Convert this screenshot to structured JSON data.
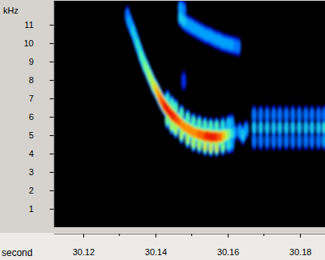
{
  "chart_data": {
    "type": "heatmap",
    "xlabel": "second",
    "ylabel": "kHz",
    "xlim": [
      30.1118,
      30.1869
    ],
    "ylim": [
      0,
      12.3
    ],
    "xticks": [
      30.12,
      30.14,
      30.16,
      30.18
    ],
    "xminorticks": [
      30.13,
      30.15,
      30.17
    ],
    "yticks": [
      1,
      2,
      3,
      4,
      5,
      6,
      7,
      8,
      9,
      10,
      11
    ],
    "zlim": [
      0,
      1
    ],
    "cells": {
      "x": [
        30.1322,
        30.1327,
        30.1332,
        30.1338,
        30.1344,
        30.135,
        30.1356,
        30.1361,
        30.1367,
        30.1372,
        30.1378,
        30.1383,
        30.1389,
        30.1394,
        30.14,
        30.1405,
        30.1411,
        30.1416,
        30.1422,
        30.1427,
        30.1433,
        30.1439,
        30.1445,
        30.1451,
        30.1456,
        30.1464,
        30.1472,
        30.148,
        30.1489,
        30.1497,
        30.1505,
        30.1513,
        30.1521,
        30.1529,
        30.1537,
        30.1545,
        30.1553,
        30.1561,
        30.1569,
        30.1578,
        30.1586,
        30.1594,
        30.1602,
        30.1611,
        30.1618,
        30.1433,
        30.1445,
        30.1456,
        30.1472,
        30.1489,
        30.1505,
        30.1521,
        30.1537,
        30.1553,
        30.1569,
        30.1586,
        30.1602,
        30.1611,
        30.1433,
        30.1445,
        30.1456,
        30.1472,
        30.1489,
        30.1505,
        30.1521,
        30.1537,
        30.1553,
        30.1569,
        30.1586,
        30.1602,
        30.1611,
        30.1469,
        30.1469,
        30.1478,
        30.1478,
        30.1487,
        30.1496,
        30.1504,
        30.1513,
        30.1522,
        30.1531,
        30.154,
        30.1549,
        30.1558,
        30.1567,
        30.1576,
        30.1584,
        30.1593,
        30.1602,
        30.1611,
        30.162,
        30.1629,
        30.1478,
        30.1633,
        30.1642,
        30.1651,
        30.1673,
        30.1673,
        30.1673,
        30.1691,
        30.1691,
        30.1691,
        30.1709,
        30.1709,
        30.1709,
        30.1727,
        30.1727,
        30.1727,
        30.1744,
        30.1744,
        30.1744,
        30.1762,
        30.1762,
        30.1762,
        30.178,
        30.178,
        30.178,
        30.1798,
        30.1798,
        30.1798,
        30.1816,
        30.1816,
        30.1816,
        30.1833,
        30.1833,
        30.1833,
        30.1851,
        30.1851,
        30.1851,
        30.1867,
        30.1867,
        30.1867
      ],
      "y": [
        11.5,
        11.2,
        10.95,
        10.65,
        10.3,
        9.95,
        9.6,
        9.3,
        9.0,
        8.75,
        8.5,
        8.25,
        8.0,
        7.75,
        7.55,
        7.35,
        7.1,
        6.9,
        6.7,
        6.55,
        6.4,
        6.25,
        6.1,
        6.0,
        5.9,
        5.75,
        5.6,
        5.45,
        5.35,
        5.25,
        5.15,
        5.1,
        5.05,
        5.0,
        4.95,
        4.95,
        4.9,
        4.9,
        4.9,
        4.9,
        4.95,
        5.0,
        5.05,
        5.1,
        5.15,
        6.95,
        6.65,
        6.45,
        6.15,
        5.9,
        5.7,
        5.6,
        5.5,
        5.45,
        5.45,
        5.5,
        5.6,
        5.65,
        5.85,
        5.55,
        5.35,
        5.05,
        4.8,
        4.6,
        4.5,
        4.4,
        4.35,
        4.35,
        4.4,
        4.5,
        4.55,
        11.4,
        11.9,
        11.2,
        11.8,
        11.05,
        10.95,
        10.85,
        10.75,
        10.65,
        10.55,
        10.45,
        10.4,
        10.3,
        10.2,
        10.15,
        10.05,
        10.0,
        9.95,
        9.9,
        9.85,
        9.8,
        7.95,
        5.2,
        5.0,
        5.3,
        4.7,
        5.4,
        6.1,
        4.7,
        5.4,
        6.1,
        4.7,
        5.4,
        6.1,
        4.7,
        5.4,
        6.1,
        4.7,
        5.4,
        6.1,
        4.7,
        5.4,
        6.1,
        4.7,
        5.4,
        6.1,
        4.7,
        5.4,
        6.1,
        4.7,
        5.4,
        6.1,
        4.7,
        5.4,
        6.1,
        4.7,
        5.4,
        6.1,
        4.7,
        5.4,
        6.1
      ],
      "z": [
        0.3,
        0.35,
        0.35,
        0.4,
        0.4,
        0.45,
        0.45,
        0.5,
        0.5,
        0.55,
        0.55,
        0.6,
        0.6,
        0.65,
        0.7,
        0.75,
        0.8,
        0.85,
        0.9,
        0.95,
        0.95,
        0.95,
        0.95,
        0.9,
        0.9,
        0.85,
        0.8,
        0.8,
        0.8,
        0.8,
        0.8,
        0.8,
        0.85,
        0.85,
        0.9,
        0.95,
        0.95,
        0.95,
        0.9,
        0.85,
        0.75,
        0.65,
        0.55,
        0.45,
        0.35,
        0.45,
        0.5,
        0.5,
        0.5,
        0.5,
        0.5,
        0.5,
        0.5,
        0.5,
        0.5,
        0.45,
        0.4,
        0.35,
        0.55,
        0.6,
        0.6,
        0.6,
        0.6,
        0.6,
        0.6,
        0.65,
        0.65,
        0.65,
        0.55,
        0.45,
        0.35,
        0.4,
        0.35,
        0.4,
        0.3,
        0.35,
        0.35,
        0.35,
        0.35,
        0.35,
        0.35,
        0.35,
        0.35,
        0.35,
        0.35,
        0.35,
        0.35,
        0.35,
        0.35,
        0.35,
        0.3,
        0.3,
        0.2,
        0.35,
        0.4,
        0.35,
        0.3,
        0.4,
        0.3,
        0.3,
        0.4,
        0.3,
        0.3,
        0.4,
        0.3,
        0.3,
        0.4,
        0.3,
        0.3,
        0.4,
        0.3,
        0.3,
        0.4,
        0.3,
        0.3,
        0.4,
        0.3,
        0.3,
        0.4,
        0.3,
        0.3,
        0.4,
        0.3,
        0.3,
        0.4,
        0.3,
        0.3,
        0.4,
        0.3,
        0.35,
        0.45,
        0.3
      ]
    }
  }
}
